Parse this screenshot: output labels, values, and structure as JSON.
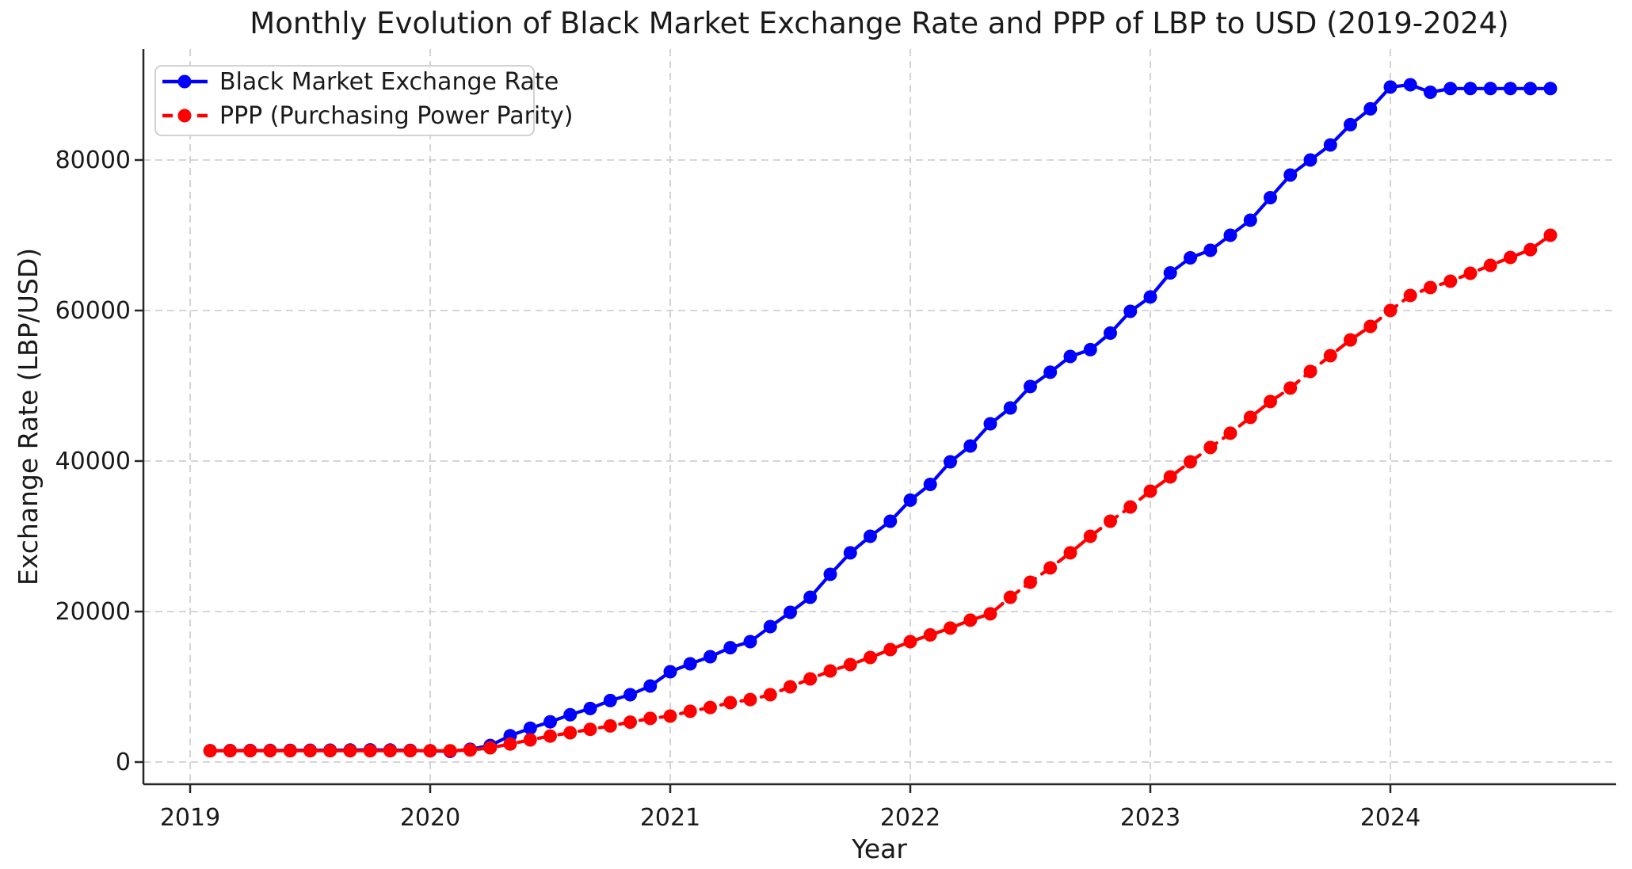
{
  "figure": {
    "title": "Monthly Evolution of Black Market Exchange Rate and PPP of LBP to USD (2019-2024)",
    "xlabel": "Year",
    "ylabel": "Exchange Rate (LBP/USD)"
  },
  "legend": {
    "items": [
      {
        "label": "Black Market Exchange Rate",
        "color": "#0000ff",
        "style": "solid"
      },
      {
        "label": "PPP (Purchasing Power Parity)",
        "color": "#ff0000",
        "style": "dashed"
      }
    ]
  },
  "colors": {
    "black_market": "#0000ff",
    "ppp": "#ff0000",
    "grid": "#c9c9c9",
    "spine": "#262626",
    "text": "#1a1a1a",
    "legend_border": "#cccccc"
  },
  "chart_data": {
    "type": "line",
    "title": "Monthly Evolution of Black Market Exchange Rate and PPP of LBP to USD (2019-2024)",
    "xlabel": "Year",
    "ylabel": "Exchange Rate (LBP/USD)",
    "grid": true,
    "legend_position": "upper-left",
    "x_ticks": [
      2019,
      2020,
      2021,
      2022,
      2023,
      2024
    ],
    "y_ticks": [
      0,
      20000,
      40000,
      60000,
      80000
    ],
    "ylim": [
      -3100,
      94700
    ],
    "xlim_years": [
      2018.8,
      2024.94
    ],
    "months": [
      "2019-02",
      "2019-03",
      "2019-04",
      "2019-05",
      "2019-06",
      "2019-07",
      "2019-08",
      "2019-09",
      "2019-10",
      "2019-11",
      "2019-12",
      "2020-01",
      "2020-02",
      "2020-03",
      "2020-04",
      "2020-05",
      "2020-06",
      "2020-07",
      "2020-08",
      "2020-09",
      "2020-10",
      "2020-11",
      "2020-12",
      "2021-01",
      "2021-02",
      "2021-03",
      "2021-04",
      "2021-05",
      "2021-06",
      "2021-07",
      "2021-08",
      "2021-09",
      "2021-10",
      "2021-11",
      "2021-12",
      "2022-01",
      "2022-02",
      "2022-03",
      "2022-04",
      "2022-05",
      "2022-06",
      "2022-07",
      "2022-08",
      "2022-09",
      "2022-10",
      "2022-11",
      "2022-12",
      "2023-01",
      "2023-02",
      "2023-03",
      "2023-04",
      "2023-05",
      "2023-06",
      "2023-07",
      "2023-08",
      "2023-09",
      "2023-10",
      "2023-11",
      "2023-12",
      "2024-01",
      "2024-02",
      "2024-03",
      "2024-04",
      "2024-05",
      "2024-06",
      "2024-07",
      "2024-08",
      "2024-09"
    ],
    "series": [
      {
        "name": "Black Market Exchange Rate",
        "color": "#0000ff",
        "line_style": "solid",
        "marker": "circle",
        "values": [
          1520,
          1530,
          1540,
          1550,
          1560,
          1570,
          1580,
          1600,
          1620,
          1600,
          1560,
          1500,
          1420,
          1700,
          2200,
          3500,
          4500,
          5350,
          6280,
          7120,
          8170,
          8950,
          10100,
          12000,
          13050,
          14000,
          15200,
          16000,
          18000,
          19900,
          21900,
          24950,
          27800,
          30000,
          32000,
          34800,
          36900,
          39900,
          42000,
          44950,
          47050,
          49900,
          51800,
          53900,
          54800,
          57000,
          59900,
          61800,
          65000,
          67000,
          68000,
          70000,
          72000,
          75000,
          78000,
          80000,
          82000,
          84700,
          86800,
          89700,
          90000,
          89000,
          89500,
          89500,
          89500,
          89500,
          89500,
          89500
        ]
      },
      {
        "name": "PPP (Purchasing Power Parity)",
        "color": "#ff0000",
        "line_style": "dashed",
        "marker": "circle",
        "values": [
          1510,
          1510,
          1510,
          1510,
          1510,
          1510,
          1510,
          1510,
          1510,
          1510,
          1510,
          1510,
          1510,
          1600,
          1900,
          2400,
          2950,
          3450,
          3900,
          4350,
          4800,
          5300,
          5800,
          6100,
          6750,
          7250,
          7900,
          8300,
          8950,
          10000,
          11050,
          12100,
          12950,
          13900,
          14950,
          16000,
          16900,
          17800,
          18850,
          19700,
          21900,
          23900,
          25800,
          27800,
          30000,
          32000,
          33900,
          36000,
          37900,
          39900,
          41800,
          43700,
          45800,
          47900,
          49700,
          51900,
          54000,
          56100,
          57900,
          60000,
          62000,
          63050,
          63900,
          64950,
          66000,
          67050,
          68100,
          70000
        ]
      }
    ]
  }
}
